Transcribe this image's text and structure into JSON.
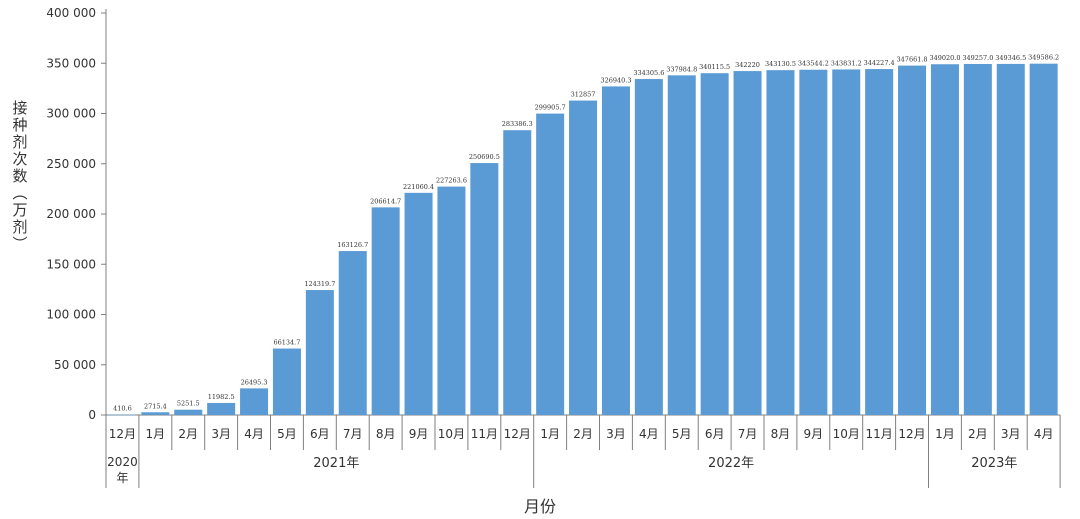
{
  "chart_data": {
    "type": "bar",
    "ylabel": "接种剂次数（万剂）",
    "xlabel": "月份",
    "ylim": [
      0,
      400000
    ],
    "yticks": [
      0,
      50000,
      100000,
      150000,
      200000,
      250000,
      300000,
      350000,
      400000
    ],
    "ytick_labels": [
      "0",
      "50 000",
      "100 000",
      "150 000",
      "200 000",
      "250 000",
      "300 000",
      "350 000",
      "400 000"
    ],
    "grid": false,
    "bar_color": "#5B9BD5",
    "categories": [
      "12月",
      "1月",
      "2月",
      "3月",
      "4月",
      "5月",
      "6月",
      "7月",
      "8月",
      "9月",
      "10月",
      "11月",
      "12月",
      "1月",
      "2月",
      "3月",
      "4月",
      "5月",
      "6月",
      "7月",
      "8月",
      "9月",
      "10月",
      "11月",
      "12月",
      "1月",
      "2月",
      "3月",
      "4月"
    ],
    "values": [
      410.6,
      2715.4,
      5251.5,
      11982.5,
      26495.3,
      66134.7,
      124319.7,
      163126.7,
      206614.7,
      221060.4,
      227263.6,
      250690.5,
      283386.3,
      299905.7,
      312857,
      326940.3,
      334305.6,
      337984.8,
      340115.5,
      342220,
      343130.5,
      343544.2,
      343831.2,
      344227.4,
      347661.8,
      349020.0,
      349257.0,
      349346.5,
      349586.2
    ],
    "value_labels": [
      "410.6",
      "2715.4",
      "5251.5",
      "11982.5",
      "26495.3",
      "66134.7",
      "124319.7",
      "163126.7",
      "206614.7",
      "221060.4",
      "227263.6",
      "250690.5",
      "283386.3",
      "299905.7",
      "312857",
      "326940.3",
      "334305.6",
      "337984.8",
      "340115.5",
      "342220",
      "343130.5",
      "343544.2",
      "343831.2",
      "344227.4",
      "347661.8",
      "349020.0",
      "349257.0",
      "349346.5",
      "349586.2"
    ],
    "year_groups": [
      {
        "label": "2020年",
        "start": 0,
        "count": 1
      },
      {
        "label": "2021年",
        "start": 1,
        "count": 12
      },
      {
        "label": "2022年",
        "start": 13,
        "count": 12
      },
      {
        "label": "2023年",
        "start": 25,
        "count": 4
      }
    ]
  }
}
